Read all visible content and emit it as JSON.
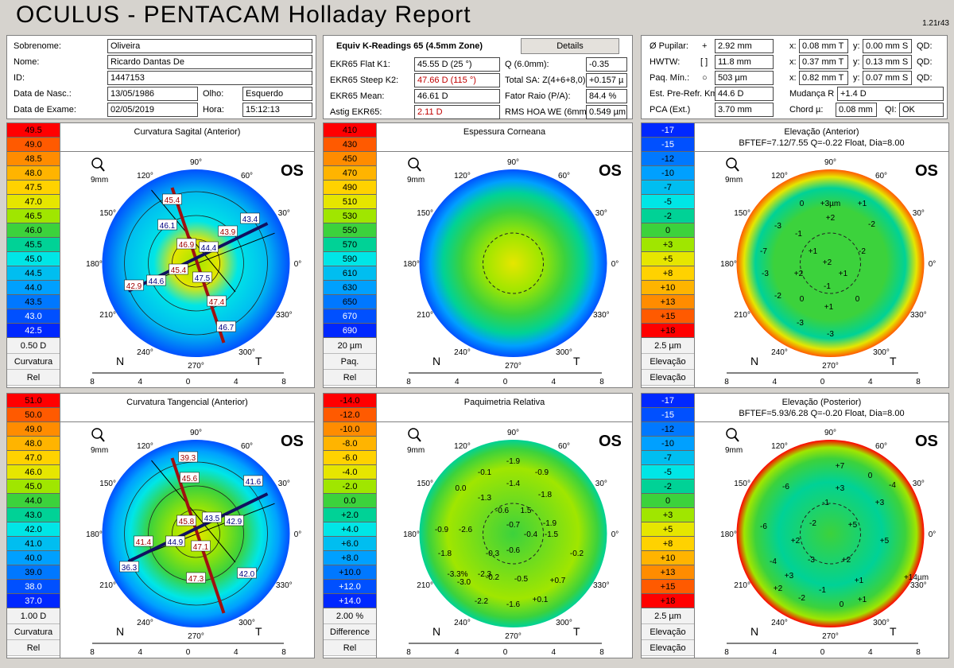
{
  "header": {
    "title": "OCULUS  -  PENTACAM   Holladay Report",
    "version": "1.21r43"
  },
  "patient": {
    "sobrenome_label": "Sobrenome:",
    "sobrenome": "Oliveira",
    "nome_label": "Nome:",
    "nome": "Ricardo Dantas De",
    "id_label": "ID:",
    "id": "1447153",
    "dob_label": "Data de Nasc.:",
    "dob": "13/05/1986",
    "eye_label": "Olho:",
    "eye": "Esquerdo",
    "exam_label": "Data de Exame:",
    "exam_date": "02/05/2019",
    "time_label": "Hora:",
    "time": "15:12:13"
  },
  "kreadings": {
    "title": "Equiv K-Readings 65 (4.5mm Zone)",
    "details": "Details",
    "k1_label": "EKR65 Flat K1:",
    "k1": "45.55 D  (25 °)",
    "k2_label": "EKR65 Steep K2:",
    "k2": "47.66 D  (115 °)",
    "km_label": "EKR65 Mean:",
    "km": "46.61 D",
    "astig_label": "Astig EKR65:",
    "astig": "2.11 D",
    "q_label": "Q (6.0mm):",
    "q": "-0.35",
    "sa_label": "Total SA: Z(4+6+8,0)",
    "sa": "+0.157 µ",
    "fr_label": "Fator Raio (P/A):",
    "fr": "84.4 %",
    "rms_label": "RMS HOA WE (6mm)",
    "rms": "0.549 µm"
  },
  "pupil": {
    "pupil_label": "Ø Pupilar:",
    "pupil_sym": "+",
    "pupil": "2.92 mm",
    "hwtw_label": "HWTW:",
    "hwtw_sym": "[ ]",
    "hwtw": "11.8 mm",
    "paq_label": "Paq. Mín.:",
    "paq_sym": "○",
    "paq": "503 µm",
    "x_label": "x:",
    "y_label": "y:",
    "qd_label": "QD:",
    "x1": "0.08 mm T",
    "y1": "0.00 mm S",
    "x2": "0.37 mm T",
    "y2": "0.13 mm S",
    "x3": "0.82 mm T",
    "y3": "0.07 mm S",
    "est_label": "Est. Pre-Refr. Km",
    "est": "44.6 D",
    "mud_label": "Mudança R",
    "mud": "+1.4 D",
    "pca_label": "PCA (Ext.)",
    "pca": "3.70 mm",
    "chord_label": "Chord µ:",
    "chord": "0.08 mm",
    "ql_label": "QI:",
    "ql": "OK"
  },
  "maps": [
    {
      "title": "Curvatura Sagital (Anterior)",
      "subtitle": "",
      "os": "OS",
      "scale": [
        "49.5",
        "49.0",
        "48.5",
        "48.0",
        "47.5",
        "47.0",
        "46.5",
        "46.0",
        "45.5",
        "45.0",
        "44.5",
        "44.0",
        "43.5",
        "43.0",
        "42.5"
      ],
      "colors": [
        "#ff0000",
        "#ff5a00",
        "#ff8c00",
        "#ffb400",
        "#ffd200",
        "#e6e600",
        "#a0e600",
        "#3cd23c",
        "#00d296",
        "#00e6e6",
        "#00bef0",
        "#00a0ff",
        "#0078ff",
        "#0050ff",
        "#0028ff"
      ],
      "info": [
        "0.50 D",
        "Curvatura",
        "Rel"
      ],
      "labels": [
        "45.4",
        "46.1",
        "46.9",
        "44.4",
        "43.9",
        "43.4",
        "42.9",
        "44.6",
        "45.4",
        "47.5",
        "47.4",
        "46.7"
      ],
      "axis": [
        "8",
        "4",
        "0",
        "4",
        "8"
      ],
      "degrees": [
        "90°",
        "120°",
        "150°",
        "180°",
        "210°",
        "240°",
        "270°",
        "300°",
        "330°",
        "0°",
        "30°",
        "60°"
      ],
      "n": "N",
      "t": "T",
      "mm": "9mm"
    },
    {
      "title": "Espessura Corneana",
      "subtitle": "",
      "os": "OS",
      "scale": [
        "410",
        "430",
        "450",
        "470",
        "490",
        "510",
        "530",
        "550",
        "570",
        "590",
        "610",
        "630",
        "650",
        "670",
        "690"
      ],
      "colors": [
        "#ff0000",
        "#ff5a00",
        "#ff8c00",
        "#ffb400",
        "#ffd200",
        "#e6e600",
        "#a0e600",
        "#3cd23c",
        "#00d296",
        "#00e6e6",
        "#00bef0",
        "#00a0ff",
        "#0078ff",
        "#0050ff",
        "#0028ff"
      ],
      "info": [
        "20 µm",
        "Paq.",
        "Rel"
      ],
      "labels": [],
      "axis": [
        "8",
        "4",
        "0",
        "4",
        "8"
      ],
      "degrees": [
        "90°",
        "120°",
        "150°",
        "180°",
        "210°",
        "240°",
        "270°",
        "300°",
        "330°",
        "0°",
        "30°",
        "60°"
      ],
      "n": "N",
      "t": "T",
      "mm": "9mm"
    },
    {
      "title": "Elevação (Anterior)",
      "subtitle": "BFTEF=7.12/7.55 Q=-0.22 Float, Dia=8.00",
      "os": "OS",
      "scale": [
        "-17",
        "-15",
        "-12",
        "-10",
        "-7",
        "-5",
        "-2",
        "0",
        "+3",
        "+5",
        "+8",
        "+10",
        "+13",
        "+15",
        "+18"
      ],
      "colors": [
        "#0028ff",
        "#0050ff",
        "#0078ff",
        "#00a0ff",
        "#00bef0",
        "#00e6e6",
        "#00d296",
        "#3cd23c",
        "#a0e600",
        "#e6e600",
        "#ffd200",
        "#ffb400",
        "#ff8c00",
        "#ff5a00",
        "#ff0000"
      ],
      "info": [
        "2.5 µm",
        "Elevação",
        "Elevação"
      ],
      "labels": [
        "+3µm",
        "0",
        "+1",
        "+2",
        "-3",
        "-1",
        "-2",
        "-7",
        "+1",
        "+2",
        "-2",
        "-3",
        "+2",
        "+1",
        "-1",
        "-2",
        "0",
        "0",
        "+1",
        "-3",
        "-3"
      ],
      "axis": [
        "8",
        "4",
        "0",
        "4",
        "8"
      ],
      "degrees": [
        "90°",
        "120°",
        "150°",
        "180°",
        "210°",
        "240°",
        "270°",
        "300°",
        "330°",
        "0°",
        "30°",
        "60°"
      ],
      "n": "N",
      "t": "T",
      "mm": "9mm"
    },
    {
      "title": "Curvatura Tangencial (Anterior)",
      "subtitle": "",
      "os": "OS",
      "scale": [
        "51.0",
        "50.0",
        "49.0",
        "48.0",
        "47.0",
        "46.0",
        "45.0",
        "44.0",
        "43.0",
        "42.0",
        "41.0",
        "40.0",
        "39.0",
        "38.0",
        "37.0"
      ],
      "colors": [
        "#ff0000",
        "#ff5a00",
        "#ff8c00",
        "#ffb400",
        "#ffd200",
        "#e6e600",
        "#a0e600",
        "#3cd23c",
        "#00d296",
        "#00e6e6",
        "#00bef0",
        "#00a0ff",
        "#0078ff",
        "#0050ff",
        "#0028ff"
      ],
      "info": [
        "1.00 D",
        "Curvatura",
        "Rel"
      ],
      "labels": [
        "39.3",
        "41.6",
        "45.6",
        "42.9",
        "45.8",
        "43.5",
        "41.4",
        "44.9",
        "47.1",
        "36.3",
        "47.3",
        "42.0"
      ],
      "axis": [
        "8",
        "4",
        "0",
        "4",
        "8"
      ],
      "degrees": [
        "90°",
        "120°",
        "150°",
        "180°",
        "210°",
        "240°",
        "270°",
        "300°",
        "330°",
        "0°",
        "30°",
        "60°"
      ],
      "n": "N",
      "t": "T",
      "mm": "9mm"
    },
    {
      "title": "Paquimetria Relativa",
      "subtitle": "",
      "os": "OS",
      "scale": [
        "-14.0",
        "-12.0",
        "-10.0",
        "-8.0",
        "-6.0",
        "-4.0",
        "-2.0",
        "0.0",
        "+2.0",
        "+4.0",
        "+6.0",
        "+8.0",
        "+10.0",
        "+12.0",
        "+14.0"
      ],
      "colors": [
        "#ff0000",
        "#ff5a00",
        "#ff8c00",
        "#ffb400",
        "#ffd200",
        "#e6e600",
        "#a0e600",
        "#3cd23c",
        "#00d296",
        "#00e6e6",
        "#00bef0",
        "#00a0ff",
        "#0078ff",
        "#0050ff",
        "#0028ff"
      ],
      "info": [
        "2.00 %",
        "Difference",
        "Rel"
      ],
      "labels": [
        "-1.9",
        "-0.1",
        "-0.9",
        "-1.4",
        "0.0",
        "-1.3",
        "-1.8",
        "-0.6",
        "1.5",
        "-0.7",
        "-1.9",
        "-0.9",
        "-2.6",
        "-0.4",
        "-1.5",
        "-1.8",
        "-0.3",
        "-0.6",
        "-0.2",
        "-3.3%",
        "-3.0",
        "-2.3",
        "-0.2",
        "-0.5",
        "+0.7",
        "-2.2",
        "-1.6",
        "+0.1"
      ],
      "axis": [
        "8",
        "4",
        "0",
        "4",
        "8"
      ],
      "degrees": [
        "90°",
        "120°",
        "150°",
        "180°",
        "210°",
        "240°",
        "270°",
        "300°",
        "330°",
        "0°",
        "30°",
        "60°"
      ],
      "n": "N",
      "t": "T",
      "mm": "9mm"
    },
    {
      "title": "Elevação (Posterior)",
      "subtitle": "BFTEF=5.93/6.28 Q=-0.20 Float, Dia=8.00",
      "os": "OS",
      "scale": [
        "-17",
        "-15",
        "-12",
        "-10",
        "-7",
        "-5",
        "-2",
        "0",
        "+3",
        "+5",
        "+8",
        "+10",
        "+13",
        "+15",
        "+18"
      ],
      "colors": [
        "#0028ff",
        "#0050ff",
        "#0078ff",
        "#00a0ff",
        "#00bef0",
        "#00e6e6",
        "#00d296",
        "#3cd23c",
        "#a0e600",
        "#e6e600",
        "#ffd200",
        "#ffb400",
        "#ff8c00",
        "#ff5a00",
        "#ff0000"
      ],
      "info": [
        "2.5 µm",
        "Elevação",
        "Elevação"
      ],
      "labels": [
        "+7",
        "0",
        "-6",
        "+3",
        "-4",
        "-1",
        "+3",
        "-6",
        "-2",
        "+5",
        "+2",
        "+5",
        "-4",
        "-3",
        "+2",
        "+3",
        "+1",
        "+14µm",
        "+2",
        "-1",
        "-2",
        "0",
        "+1"
      ],
      "axis": [
        "8",
        "4",
        "0",
        "4",
        "8"
      ],
      "degrees": [
        "90°",
        "120°",
        "150°",
        "180°",
        "210°",
        "240°",
        "270°",
        "300°",
        "330°",
        "0°",
        "30°",
        "60°"
      ],
      "n": "N",
      "t": "T",
      "mm": "9mm"
    }
  ]
}
